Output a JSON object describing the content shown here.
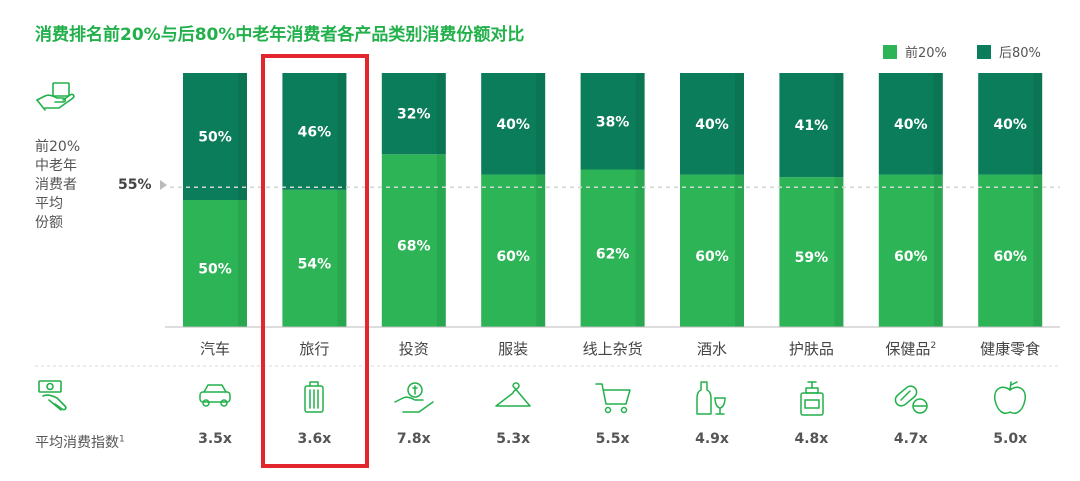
{
  "title": "消费排名前20%与后80%中老年消费者各产品类别消费份额对比",
  "legend": [
    {
      "label": "前20%",
      "color": "#2db457"
    },
    {
      "label": "后80%",
      "color": "#0b7d5a"
    }
  ],
  "left_label": [
    "前20%",
    "中老年",
    "消费者",
    "平均",
    "份额"
  ],
  "reference_line_label": "55%",
  "avg_index_label": "平均消费指数",
  "avg_index_footnote": "1",
  "chart_data": {
    "type": "bar",
    "stacked": true,
    "categories": [
      "汽车",
      "旅行",
      "投资",
      "服装",
      "线上杂货",
      "酒水",
      "护肤品",
      "保健品",
      "健康零食"
    ],
    "category_footnotes": [
      "",
      "",
      "",
      "",
      "",
      "",
      "",
      "2",
      ""
    ],
    "series": [
      {
        "name": "前20%",
        "color": "#2db457",
        "values": [
          50,
          54,
          68,
          60,
          62,
          60,
          59,
          60,
          60
        ],
        "labels": [
          "50%",
          "54%",
          "68%",
          "60%",
          "62%",
          "60%",
          "59%",
          "60%",
          "60%"
        ]
      },
      {
        "name": "后80%",
        "color": "#0b7d5a",
        "values": [
          50,
          46,
          32,
          40,
          38,
          40,
          41,
          40,
          40
        ],
        "labels": [
          "50%",
          "46%",
          "32%",
          "40%",
          "38%",
          "40%",
          "41%",
          "40%",
          "40%"
        ]
      }
    ],
    "reference_line": 55,
    "ylim": [
      0,
      100
    ],
    "avg_consumption_index": [
      "3.5x",
      "3.6x",
      "7.8x",
      "5.3x",
      "5.5x",
      "4.9x",
      "4.8x",
      "4.7x",
      "5.0x"
    ],
    "category_icons": [
      "car-icon",
      "luggage-icon",
      "money-bag-hand-icon",
      "hanger-icon",
      "shopping-cart-icon",
      "wine-icon",
      "lotion-bottle-icon",
      "pill-icon",
      "apple-icon"
    ],
    "highlighted_category": "旅行"
  },
  "left_icons": [
    "hand-share-icon",
    "money-hand-icon"
  ]
}
